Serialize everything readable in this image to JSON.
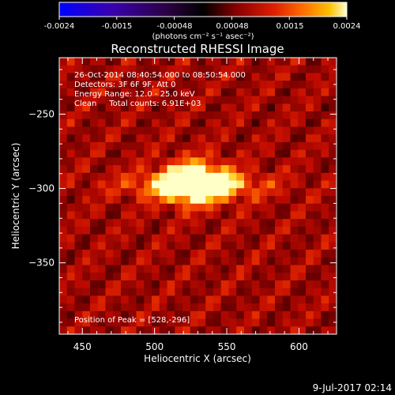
{
  "colorbar": {
    "ticks": [
      "-0.0024",
      "-0.0015",
      "-0.00048",
      "0.00048",
      "0.0015",
      "0.0024"
    ],
    "units_label": "(photons cm⁻² s⁻¹ asec⁻²)",
    "range": [
      -0.0024,
      0.0024
    ]
  },
  "title": "Reconstructed RHESSI Image",
  "info": {
    "line1": "26-Oct-2014 08:40:54.000 to 08:50:54.000",
    "line2": "Detectors: 3F 6F 9F, Att 0",
    "line3": "Energy Range: 12.0 - 25.0 keV",
    "line4": "Clean     Total counts: 6.91E+03",
    "peak": "Position of Peak = [528,-296]"
  },
  "timestamp": "9-Jul-2017 02:14",
  "chart_data": {
    "type": "heatmap",
    "title": "Reconstructed RHESSI Image",
    "xlabel": "Heliocentric X (arcsec)",
    "ylabel": "Heliocentric Y (arcsec)",
    "xlim": [
      434,
      626
    ],
    "ylim": [
      -398,
      -212
    ],
    "x_ticks": [
      450,
      500,
      550,
      600
    ],
    "y_ticks": [
      -250,
      -300,
      -350
    ],
    "x_tick_labels": [
      "450",
      "500",
      "550",
      "600"
    ],
    "y_tick_labels": [
      "−250",
      "−300",
      "−350"
    ],
    "peak": [
      528,
      -296
    ],
    "colorscale": "red-temperature"
  }
}
